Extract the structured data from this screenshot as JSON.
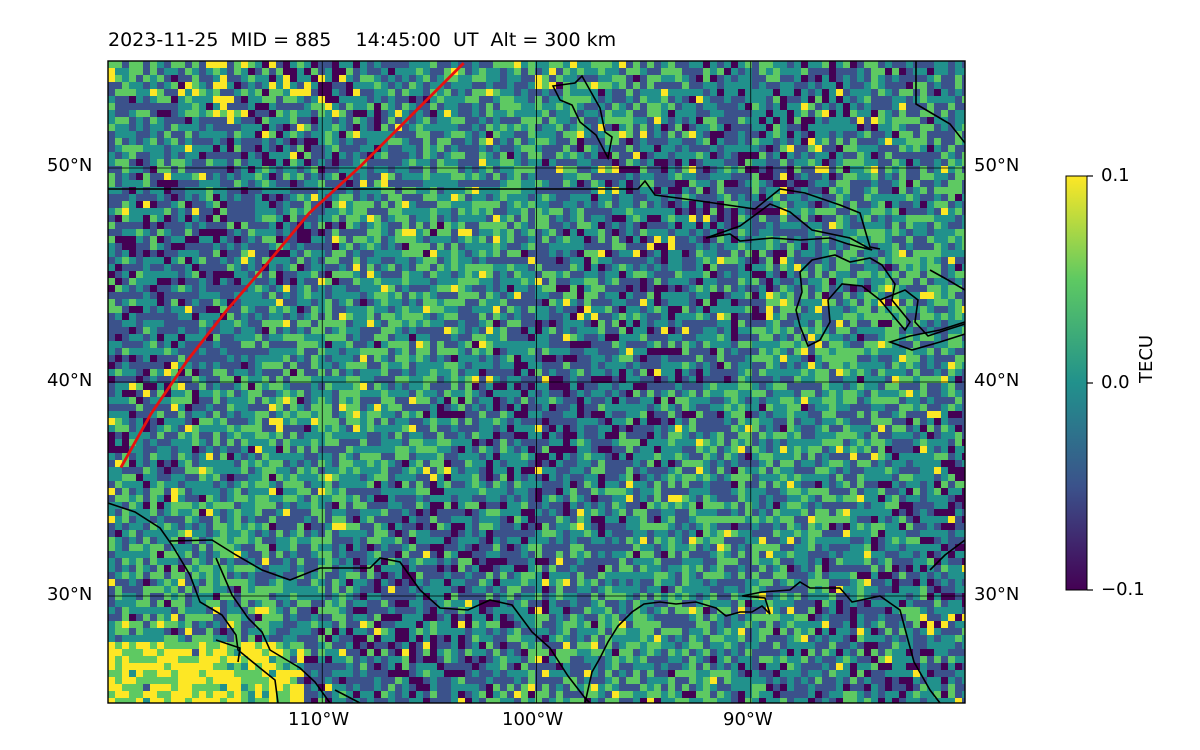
{
  "title": "2023-11-25  MID = 885    14:45:00  UT  Alt = 300 km",
  "map": {
    "lon_range": [
      -120,
      -80
    ],
    "lat_range": [
      25,
      55
    ],
    "lat_ticks": [
      {
        "lat": 50,
        "label": "50°N"
      },
      {
        "lat": 40,
        "label": "40°N"
      },
      {
        "lat": 30,
        "label": "30°N"
      }
    ],
    "lon_ticks": [
      {
        "lon": -110,
        "label": "110°W"
      },
      {
        "lon": -100,
        "label": "100°W"
      },
      {
        "lon": -90,
        "label": "90°W"
      }
    ],
    "satellite_track_color": "#e8110f",
    "satellite_track": [
      [
        -119.4,
        36.0
      ],
      [
        -118.0,
        38.5
      ],
      [
        -116.3,
        41.0
      ],
      [
        -114.5,
        43.3
      ],
      [
        -112.6,
        45.5
      ],
      [
        -110.6,
        47.9
      ],
      [
        -108.2,
        50.1
      ],
      [
        -105.7,
        52.6
      ],
      [
        -103.4,
        54.9
      ]
    ],
    "coastline_color": "#000000"
  },
  "colorbar": {
    "label": "TECU",
    "min": -0.1,
    "max": 0.1,
    "tick_labels": [
      "0.1",
      "0.0",
      "−0.1"
    ],
    "colormap": "viridis",
    "colors": [
      "#440154",
      "#3b528b",
      "#21918c",
      "#5ec962",
      "#fde725"
    ]
  }
}
